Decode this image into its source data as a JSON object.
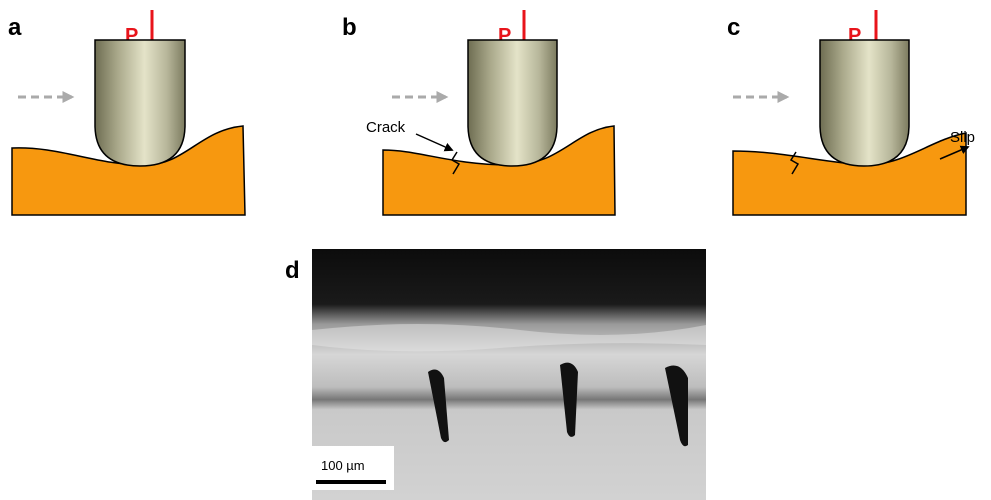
{
  "panels": [
    {
      "label": "a",
      "load": "P"
    },
    {
      "label": "b",
      "load": "P",
      "annotation": "Crack"
    },
    {
      "label": "c",
      "load": "P",
      "annotation": "Slip"
    }
  ],
  "micrograph": {
    "label": "d",
    "scale_bar": "100 µm"
  }
}
